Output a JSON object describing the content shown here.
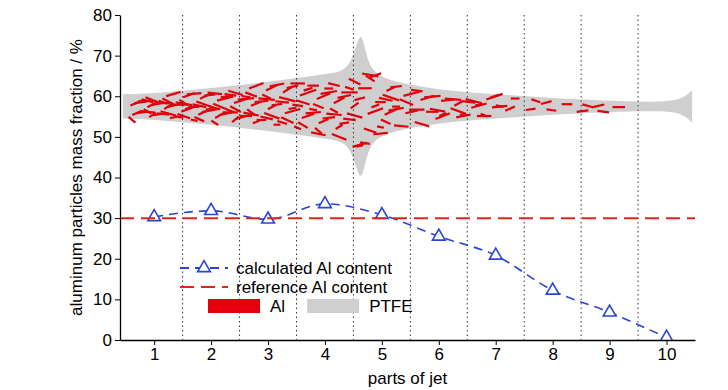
{
  "chart_data": {
    "type": "line",
    "x_label": "parts of jet",
    "y_label": "aluminum particles mass fraction / %",
    "x": [
      1,
      2,
      3,
      4,
      5,
      6,
      7,
      8,
      9,
      10
    ],
    "xlim": [
      0.4,
      10.5
    ],
    "xticks": [
      1,
      2,
      3,
      4,
      5,
      6,
      7,
      8,
      9,
      10
    ],
    "ylim": [
      0,
      80
    ],
    "yticks": [
      0,
      10,
      20,
      30,
      40,
      50,
      60,
      70,
      80
    ],
    "series": [
      {
        "name": "calculated Al content",
        "color": "#2a45d4",
        "marker": "triangle",
        "line_style": "dashed",
        "values": [
          30.3,
          31.8,
          29.7,
          33.5,
          30.8,
          25.5,
          20.8,
          12.2,
          6.8,
          0.6
        ]
      },
      {
        "name": "reference Al content",
        "color": "#e0261b",
        "type": "hline",
        "line_style": "dashed",
        "value": 30
      }
    ],
    "image_legend": [
      {
        "name": "Al",
        "color": "#e3000b"
      },
      {
        "name": "PTFE",
        "color": "#cfcfcf"
      }
    ],
    "legend": "lower left"
  }
}
